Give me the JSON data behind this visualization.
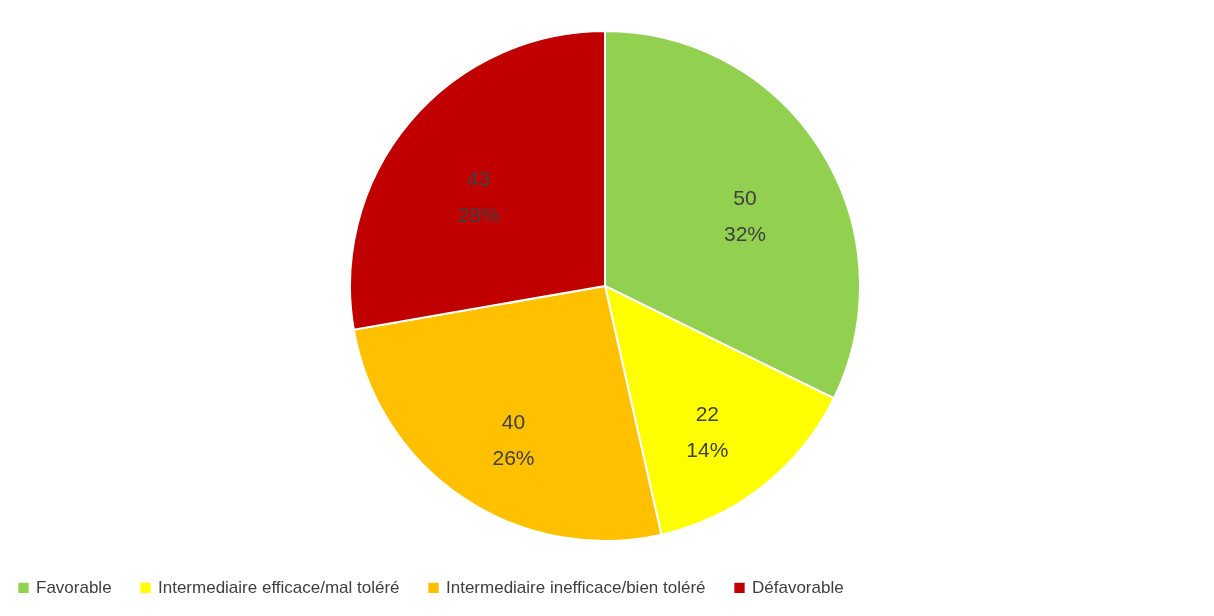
{
  "chart_data": {
    "type": "pie",
    "categories": [
      "Favorable",
      "Intermediaire efficace/mal toléré",
      "Intermediaire inefficace/bien toléré",
      "Défavorable"
    ],
    "values": [
      50,
      22,
      40,
      43
    ],
    "colors": [
      "#92d050",
      "#ffff00",
      "#ffc000",
      "#c00000"
    ],
    "value_labels": [
      "50\n32%",
      "22\n14%",
      "40\n26%",
      "43\n28%"
    ],
    "legend": "bottom"
  }
}
